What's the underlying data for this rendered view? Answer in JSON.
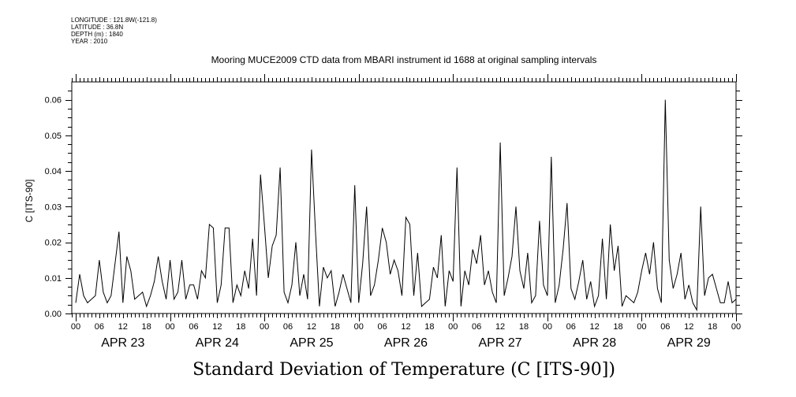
{
  "header": {
    "longitude": "LONGITUDE : 121.8W(-121.8)",
    "latitude": "LATITUDE : 36.8N",
    "depth": "DEPTH (m) : 1840",
    "year": "YEAR : 2010"
  },
  "chart_data": {
    "type": "line",
    "title": "Mooring MUCE2009 CTD data from MBARI instrument id 1688 at original sampling intervals",
    "xlabel": "Standard Deviation of Temperature (C [ITS-90])",
    "ylabel": "C [ITS-90]",
    "ylim": [
      0,
      0.065
    ],
    "xlim_hours": [
      -1,
      168
    ],
    "x_start": "APR 23 2010 00:00",
    "x_step_hours": 1,
    "y_ticks": [
      0.0,
      0.01,
      0.02,
      0.03,
      0.04,
      0.05,
      0.06
    ],
    "y_tick_labels": [
      "0.00",
      "0.01",
      "0.02",
      "0.03",
      "0.04",
      "0.05",
      "0.06"
    ],
    "x_tick_labels": [
      "00",
      "06",
      "12",
      "18",
      "00",
      "06",
      "12",
      "18",
      "00",
      "06",
      "12",
      "18",
      "00",
      "06",
      "12",
      "18",
      "00",
      "06",
      "12",
      "18",
      "00",
      "06",
      "12",
      "18",
      "00",
      "06",
      "12",
      "18",
      "00"
    ],
    "date_labels": [
      "APR 23",
      "APR 24",
      "APR 25",
      "APR 26",
      "APR 27",
      "APR 28",
      "APR 29"
    ],
    "grid": false,
    "series": [
      {
        "name": "Standard Deviation of Temperature",
        "color": "#000000",
        "values": [
          0.003,
          0.011,
          0.005,
          0.003,
          0.004,
          0.005,
          0.015,
          0.006,
          0.003,
          0.005,
          0.014,
          0.023,
          0.003,
          0.016,
          0.012,
          0.004,
          0.005,
          0.006,
          0.002,
          0.005,
          0.009,
          0.016,
          0.009,
          0.004,
          0.015,
          0.004,
          0.006,
          0.015,
          0.004,
          0.008,
          0.008,
          0.004,
          0.012,
          0.01,
          0.025,
          0.024,
          0.003,
          0.008,
          0.024,
          0.024,
          0.003,
          0.008,
          0.005,
          0.012,
          0.007,
          0.021,
          0.005,
          0.039,
          0.025,
          0.01,
          0.019,
          0.022,
          0.041,
          0.006,
          0.003,
          0.008,
          0.02,
          0.005,
          0.011,
          0.004,
          0.046,
          0.023,
          0.002,
          0.013,
          0.01,
          0.012,
          0.002,
          0.006,
          0.011,
          0.007,
          0.003,
          0.036,
          0.003,
          0.014,
          0.03,
          0.005,
          0.008,
          0.015,
          0.024,
          0.02,
          0.011,
          0.015,
          0.012,
          0.005,
          0.027,
          0.025,
          0.005,
          0.017,
          0.002,
          0.003,
          0.004,
          0.013,
          0.01,
          0.022,
          0.002,
          0.012,
          0.009,
          0.041,
          0.002,
          0.012,
          0.008,
          0.018,
          0.014,
          0.022,
          0.008,
          0.012,
          0.006,
          0.003,
          0.048,
          0.005,
          0.01,
          0.016,
          0.03,
          0.012,
          0.007,
          0.017,
          0.003,
          0.005,
          0.026,
          0.008,
          0.005,
          0.044,
          0.003,
          0.008,
          0.018,
          0.031,
          0.007,
          0.004,
          0.009,
          0.015,
          0.004,
          0.009,
          0.002,
          0.005,
          0.021,
          0.004,
          0.025,
          0.012,
          0.019,
          0.002,
          0.005,
          0.004,
          0.003,
          0.006,
          0.012,
          0.017,
          0.011,
          0.02,
          0.007,
          0.003,
          0.06,
          0.015,
          0.007,
          0.011,
          0.017,
          0.004,
          0.008,
          0.003,
          0.001,
          0.03,
          0.005,
          0.01,
          0.011,
          0.007,
          0.003,
          0.003,
          0.009,
          0.003,
          0.004
        ]
      }
    ]
  }
}
